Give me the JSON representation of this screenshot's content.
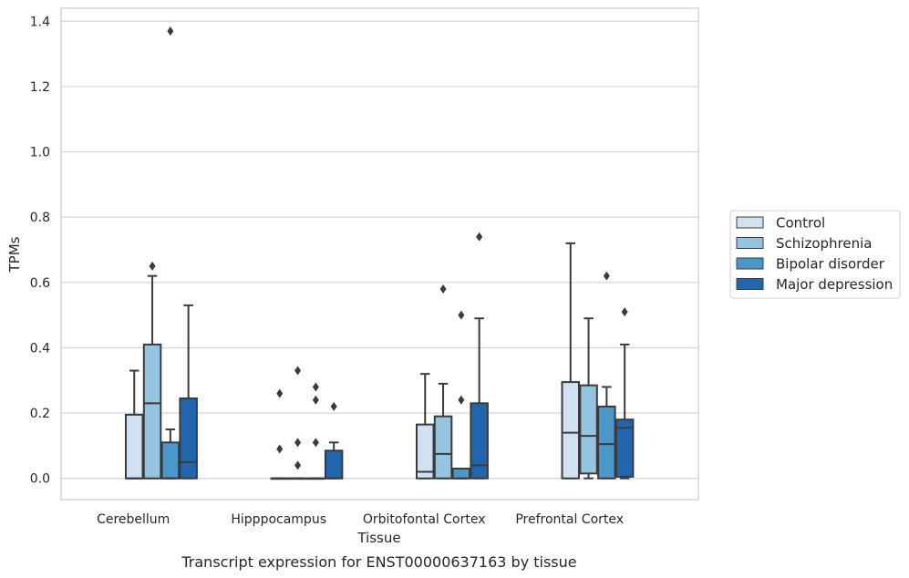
{
  "caption": "Transcript expression for ENST00000637163 by tissue",
  "chart_data": {
    "type": "box",
    "xlabel": "Tissue",
    "ylabel": "TPMs",
    "ylim": [
      -0.065,
      1.44
    ],
    "yticks": [
      0.0,
      0.2,
      0.4,
      0.6,
      0.8,
      1.0,
      1.2,
      1.4
    ],
    "ytick_labels": [
      "0.0",
      "0.2",
      "0.4",
      "0.6",
      "0.8",
      "1.0",
      "1.2",
      "1.4"
    ],
    "grid": "horizontal",
    "legend_position": "right",
    "categories": [
      "Cerebellum",
      "Hipppocampus",
      "Orbitofontal Cortex",
      "Prefrontal Cortex"
    ],
    "series": [
      {
        "name": "Control",
        "color": "#d0e1f2",
        "boxes": [
          {
            "q1": 0.0,
            "median": 0.0,
            "q3": 0.195,
            "whislo": 0.0,
            "whishi": 0.33,
            "fliers": []
          },
          {
            "q1": 0.0,
            "median": 0.0,
            "q3": 0.0,
            "whislo": 0.0,
            "whishi": 0.0,
            "fliers": [
              0.26,
              0.09
            ]
          },
          {
            "q1": 0.0,
            "median": 0.02,
            "q3": 0.165,
            "whislo": 0.0,
            "whishi": 0.32,
            "fliers": []
          },
          {
            "q1": 0.0,
            "median": 0.14,
            "q3": 0.295,
            "whislo": 0.0,
            "whishi": 0.72,
            "fliers": []
          }
        ]
      },
      {
        "name": "Schizophrenia",
        "color": "#94c4df",
        "boxes": [
          {
            "q1": 0.0,
            "median": 0.23,
            "q3": 0.41,
            "whislo": 0.0,
            "whishi": 0.62,
            "fliers": [
              0.65
            ]
          },
          {
            "q1": 0.0,
            "median": 0.0,
            "q3": 0.0,
            "whislo": 0.0,
            "whishi": 0.0,
            "fliers": [
              0.33,
              0.11,
              0.04
            ]
          },
          {
            "q1": 0.0,
            "median": 0.075,
            "q3": 0.19,
            "whislo": 0.0,
            "whishi": 0.29,
            "fliers": [
              0.58
            ]
          },
          {
            "q1": 0.015,
            "median": 0.13,
            "q3": 0.285,
            "whislo": 0.0,
            "whishi": 0.49,
            "fliers": []
          }
        ]
      },
      {
        "name": "Bipolar disorder",
        "color": "#4a98c9",
        "boxes": [
          {
            "q1": 0.0,
            "median": 0.0,
            "q3": 0.11,
            "whislo": 0.0,
            "whishi": 0.15,
            "fliers": [
              1.37
            ]
          },
          {
            "q1": 0.0,
            "median": 0.0,
            "q3": 0.0,
            "whislo": 0.0,
            "whishi": 0.0,
            "fliers": [
              0.28,
              0.24,
              0.11
            ]
          },
          {
            "q1": 0.0,
            "median": 0.0,
            "q3": 0.03,
            "whislo": 0.0,
            "whishi": 0.03,
            "fliers": [
              0.5,
              0.24
            ]
          },
          {
            "q1": 0.0,
            "median": 0.105,
            "q3": 0.22,
            "whislo": 0.0,
            "whishi": 0.28,
            "fliers": [
              0.62
            ]
          }
        ]
      },
      {
        "name": "Major depression",
        "color": "#2166ac",
        "boxes": [
          {
            "q1": 0.0,
            "median": 0.05,
            "q3": 0.245,
            "whislo": 0.0,
            "whishi": 0.53,
            "fliers": []
          },
          {
            "q1": 0.0,
            "median": 0.0,
            "q3": 0.085,
            "whislo": 0.0,
            "whishi": 0.11,
            "fliers": [
              0.22
            ]
          },
          {
            "q1": 0.0,
            "median": 0.04,
            "q3": 0.23,
            "whislo": 0.0,
            "whishi": 0.49,
            "fliers": [
              0.74
            ]
          },
          {
            "q1": 0.005,
            "median": 0.155,
            "q3": 0.18,
            "whislo": 0.0,
            "whishi": 0.41,
            "fliers": [
              0.51
            ]
          }
        ]
      }
    ]
  }
}
